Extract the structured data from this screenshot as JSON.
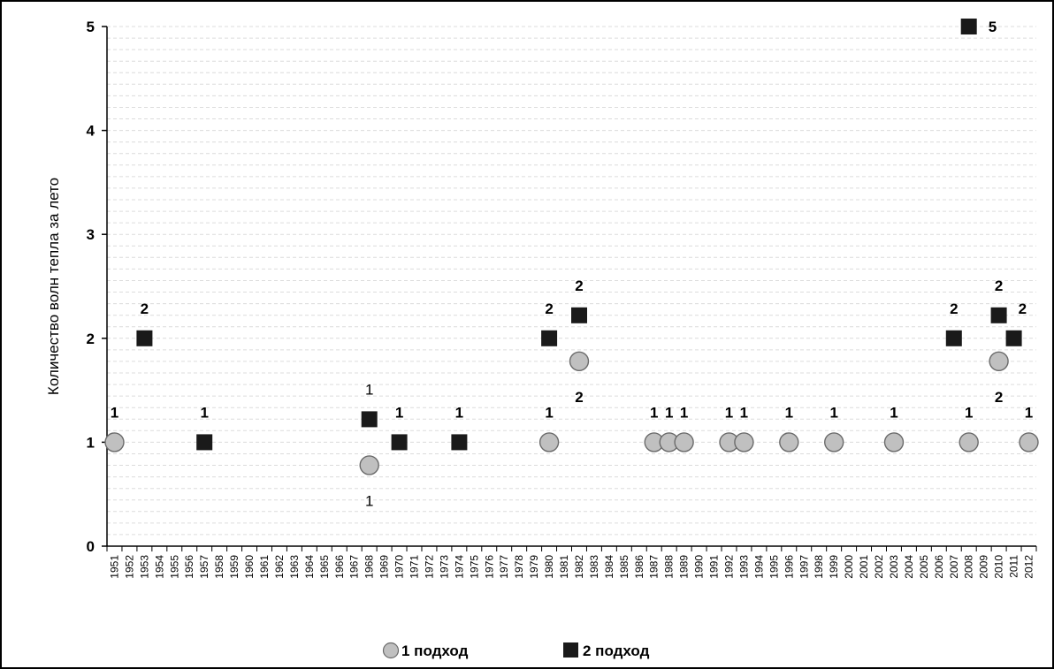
{
  "chart_data": {
    "type": "scatter",
    "ylabel": "Количество волн тепла за лето",
    "ylim": [
      0,
      5
    ],
    "yticks": [
      "0",
      "1",
      "2",
      "3",
      "4",
      "5"
    ],
    "x_categories": [
      "1951",
      "1952",
      "1953",
      "1954",
      "1955",
      "1956",
      "1957",
      "1958",
      "1959",
      "1960",
      "1961",
      "1962",
      "1963",
      "1964",
      "1965",
      "1966",
      "1967",
      "1968",
      "1969",
      "1970",
      "1971",
      "1972",
      "1973",
      "1974",
      "1975",
      "1976",
      "1977",
      "1978",
      "1979",
      "1980",
      "1981",
      "1982",
      "1983",
      "1984",
      "1985",
      "1986",
      "1987",
      "1988",
      "1989",
      "1990",
      "1991",
      "1992",
      "1993",
      "1994",
      "1995",
      "1996",
      "1997",
      "1998",
      "1999",
      "2000",
      "2001",
      "2002",
      "2003",
      "2004",
      "2005",
      "2006",
      "2007",
      "2008",
      "2009",
      "2010",
      "2011",
      "2012"
    ],
    "grid": "horizontal dashed",
    "legend_position": "bottom",
    "series": [
      {
        "name": "1 подход",
        "marker": "circle",
        "color": "#c0c0c0",
        "points": [
          {
            "x": "1951",
            "y": 1,
            "label": "1"
          },
          {
            "x": "1968",
            "y": 1,
            "label": "1"
          },
          {
            "x": "1980",
            "y": 1,
            "label": "1"
          },
          {
            "x": "1982",
            "y": 2,
            "label": "2"
          },
          {
            "x": "1987",
            "y": 1,
            "label": "1"
          },
          {
            "x": "1988",
            "y": 1,
            "label": "1"
          },
          {
            "x": "1989",
            "y": 1,
            "label": "1"
          },
          {
            "x": "1992",
            "y": 1,
            "label": "1"
          },
          {
            "x": "1993",
            "y": 1,
            "label": "1"
          },
          {
            "x": "1996",
            "y": 1,
            "label": "1"
          },
          {
            "x": "1999",
            "y": 1,
            "label": "1"
          },
          {
            "x": "2003",
            "y": 1,
            "label": "1"
          },
          {
            "x": "2008",
            "y": 1,
            "label": "1"
          },
          {
            "x": "2010",
            "y": 2,
            "label": "2"
          },
          {
            "x": "2012",
            "y": 1,
            "label": "1"
          }
        ]
      },
      {
        "name": "2 подход",
        "marker": "square",
        "color": "#1a1a1a",
        "points": [
          {
            "x": "1953",
            "y": 2,
            "label": "2"
          },
          {
            "x": "1957",
            "y": 1,
            "label": "1"
          },
          {
            "x": "1968",
            "y": 1,
            "label": "1"
          },
          {
            "x": "1970",
            "y": 1,
            "label": "1"
          },
          {
            "x": "1974",
            "y": 1,
            "label": "1"
          },
          {
            "x": "1980",
            "y": 2,
            "label": "2"
          },
          {
            "x": "1982",
            "y": 2,
            "label": "2"
          },
          {
            "x": "2007",
            "y": 2,
            "label": "2"
          },
          {
            "x": "2008",
            "y": 5,
            "label": "5"
          },
          {
            "x": "2010",
            "y": 2,
            "label": "2"
          },
          {
            "x": "2011",
            "y": 2,
            "label": "2"
          }
        ]
      }
    ]
  }
}
